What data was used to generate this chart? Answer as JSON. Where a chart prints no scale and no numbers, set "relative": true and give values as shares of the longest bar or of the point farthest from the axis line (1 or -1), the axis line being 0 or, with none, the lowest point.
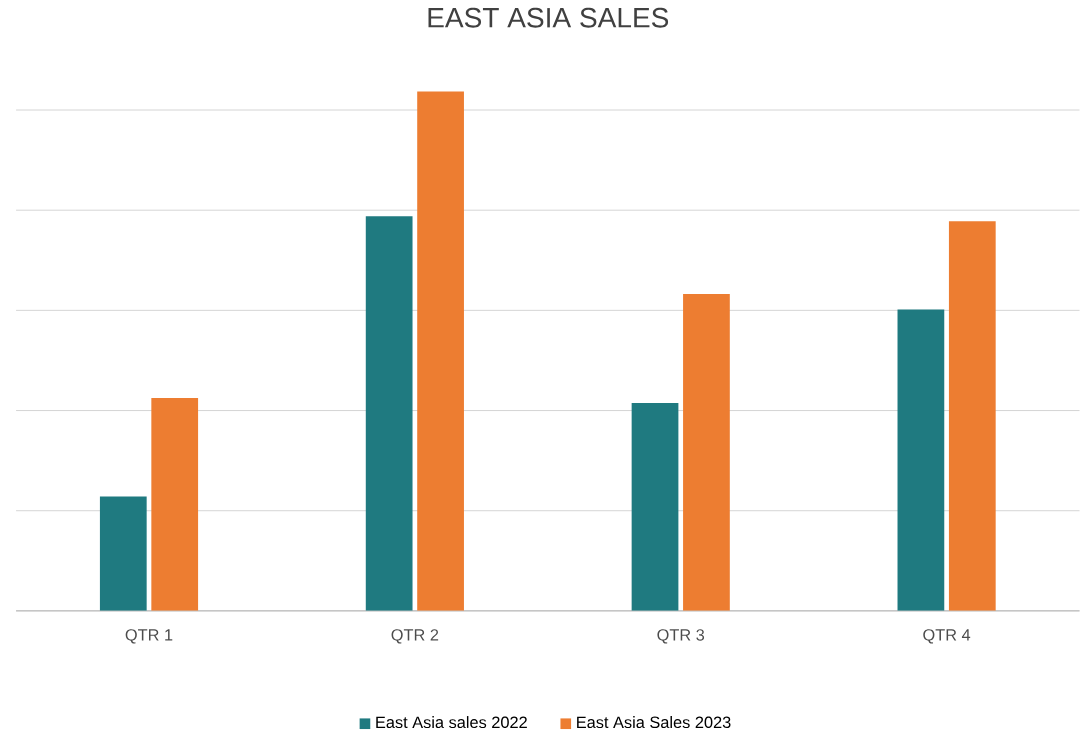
{
  "chart_data": {
    "type": "bar",
    "title": "EAST ASIA SALES",
    "categories": [
      "QTR 1",
      "QTR 2",
      "QTR 3",
      "QTR 4"
    ],
    "relative": true,
    "grid": "y",
    "legend": "bottom",
    "series": [
      {
        "name": "East Asia sales 2022",
        "color": "#1f7a80",
        "values": [
          0.22,
          0.76,
          0.4,
          0.58
        ]
      },
      {
        "name": "East Asia Sales 2023",
        "color": "#ed7d31",
        "values": [
          0.41,
          1,
          0.61,
          0.75
        ]
      }
    ]
  }
}
